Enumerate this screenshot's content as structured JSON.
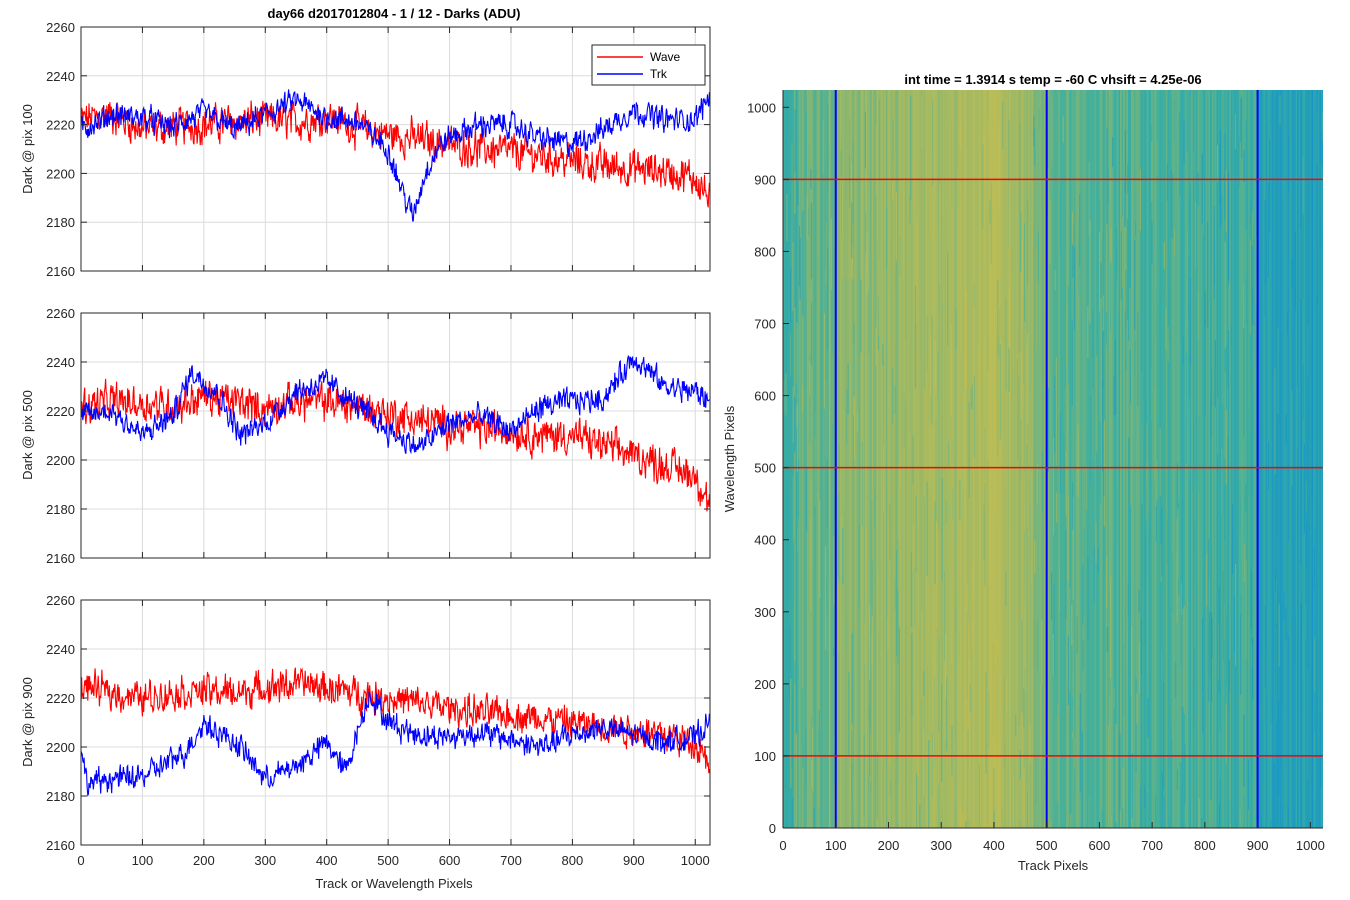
{
  "figure": {
    "suptitle": "day66 d2017012804 - 1 / 12 - Darks (ADU)"
  },
  "chart_data": [
    {
      "type": "line",
      "title": "day66 d2017012804 - 1 / 12 - Darks (ADU)",
      "xlabel": "",
      "ylabel": "Dark @ pix 100",
      "xlim": [
        0,
        1024
      ],
      "ylim": [
        2160,
        2260
      ],
      "xticks": [
        0,
        100,
        200,
        300,
        400,
        500,
        600,
        700,
        800,
        900,
        1000
      ],
      "yticks": [
        2160,
        2180,
        2200,
        2220,
        2240,
        2260
      ],
      "grid": true,
      "legend": "top-right",
      "series": [
        {
          "name": "Wave",
          "color": "#ff0000",
          "x": [
            0,
            50,
            100,
            150,
            200,
            250,
            300,
            350,
            400,
            450,
            500,
            550,
            600,
            650,
            700,
            750,
            800,
            850,
            900,
            950,
            1000,
            1023
          ],
          "values": [
            2222,
            2224,
            2218,
            2219,
            2220,
            2221,
            2222,
            2221,
            2223,
            2219,
            2216,
            2214,
            2212,
            2210,
            2209,
            2207,
            2205,
            2203,
            2202,
            2201,
            2198,
            2190
          ],
          "noise": 9
        },
        {
          "name": "Trk",
          "color": "#0000ff",
          "x": [
            0,
            50,
            100,
            150,
            200,
            250,
            300,
            350,
            400,
            450,
            500,
            520,
            540,
            560,
            580,
            600,
            650,
            700,
            750,
            800,
            850,
            900,
            950,
            1000,
            1023
          ],
          "values": [
            2218,
            2224,
            2223,
            2219,
            2225,
            2218,
            2224,
            2230,
            2223,
            2221,
            2210,
            2195,
            2182,
            2200,
            2210,
            2215,
            2220,
            2220,
            2214,
            2212,
            2218,
            2226,
            2222,
            2222,
            2232
          ],
          "noise": 6
        }
      ]
    },
    {
      "type": "line",
      "xlabel": "",
      "ylabel": "Dark @ pix 500",
      "xlim": [
        0,
        1024
      ],
      "ylim": [
        2160,
        2260
      ],
      "xticks": [
        0,
        100,
        200,
        300,
        400,
        500,
        600,
        700,
        800,
        900,
        1000
      ],
      "yticks": [
        2160,
        2180,
        2200,
        2220,
        2240,
        2260
      ],
      "grid": true,
      "series": [
        {
          "name": "Wave",
          "color": "#ff0000",
          "x": [
            0,
            50,
            100,
            150,
            200,
            250,
            300,
            350,
            400,
            450,
            500,
            550,
            600,
            650,
            700,
            750,
            800,
            850,
            900,
            950,
            1000,
            1023
          ],
          "values": [
            2222,
            2224,
            2223,
            2222,
            2226,
            2224,
            2221,
            2224,
            2224,
            2222,
            2219,
            2216,
            2214,
            2213,
            2212,
            2210,
            2210,
            2206,
            2202,
            2198,
            2194,
            2182
          ],
          "noise": 9
        },
        {
          "name": "Trk",
          "color": "#0000ff",
          "x": [
            0,
            50,
            100,
            150,
            180,
            220,
            260,
            300,
            350,
            400,
            450,
            500,
            550,
            600,
            650,
            700,
            750,
            800,
            850,
            900,
            950,
            1000,
            1023
          ],
          "values": [
            2218,
            2220,
            2210,
            2218,
            2236,
            2228,
            2210,
            2215,
            2228,
            2232,
            2222,
            2212,
            2205,
            2215,
            2218,
            2212,
            2222,
            2224,
            2225,
            2242,
            2230,
            2228,
            2224
          ],
          "noise": 6
        }
      ]
    },
    {
      "type": "line",
      "xlabel": "Track or Wavelength Pixels",
      "ylabel": "Dark @ pix 900",
      "xlim": [
        0,
        1024
      ],
      "ylim": [
        2160,
        2260
      ],
      "xticks": [
        0,
        100,
        200,
        300,
        400,
        500,
        600,
        700,
        800,
        900,
        1000
      ],
      "yticks": [
        2160,
        2180,
        2200,
        2220,
        2240,
        2260
      ],
      "grid": true,
      "series": [
        {
          "name": "Wave",
          "color": "#ff0000",
          "x": [
            0,
            50,
            100,
            150,
            200,
            250,
            300,
            350,
            400,
            450,
            500,
            550,
            600,
            650,
            700,
            750,
            800,
            850,
            900,
            950,
            1000,
            1023
          ],
          "values": [
            2225,
            2222,
            2220,
            2222,
            2223,
            2222,
            2224,
            2226,
            2224,
            2222,
            2220,
            2218,
            2216,
            2214,
            2213,
            2212,
            2210,
            2208,
            2207,
            2205,
            2202,
            2195
          ],
          "noise": 8
        },
        {
          "name": "Trk",
          "color": "#0000ff",
          "x": [
            0,
            10,
            50,
            100,
            130,
            170,
            200,
            230,
            260,
            300,
            350,
            400,
            430,
            470,
            500,
            550,
            600,
            650,
            700,
            750,
            800,
            850,
            900,
            950,
            1000,
            1023
          ],
          "values": [
            2198,
            2185,
            2187,
            2188,
            2192,
            2198,
            2210,
            2205,
            2200,
            2187,
            2192,
            2202,
            2190,
            2222,
            2210,
            2205,
            2204,
            2206,
            2203,
            2200,
            2205,
            2208,
            2205,
            2202,
            2204,
            2210
          ],
          "noise": 6
        }
      ]
    },
    {
      "type": "heatmap",
      "title": "int time = 1.3914 s    temp = -60 C    vhsift = 4.25e-06",
      "xlabel": "Track Pixels",
      "ylabel": "Wavelength Pixels",
      "xlim": [
        0,
        1024
      ],
      "ylim": [
        0,
        1024
      ],
      "xticks": [
        0,
        100,
        200,
        300,
        400,
        500,
        600,
        700,
        800,
        900,
        1000
      ],
      "yticks": [
        0,
        100,
        200,
        300,
        400,
        500,
        600,
        700,
        800,
        900,
        1000
      ],
      "grid": false,
      "colormap": "parula",
      "vertical_markers": {
        "color": "#0000ff",
        "x": [
          100,
          500,
          900
        ]
      },
      "horizontal_markers": {
        "color": "#ff0000",
        "y": [
          100,
          500,
          900
        ]
      }
    }
  ]
}
